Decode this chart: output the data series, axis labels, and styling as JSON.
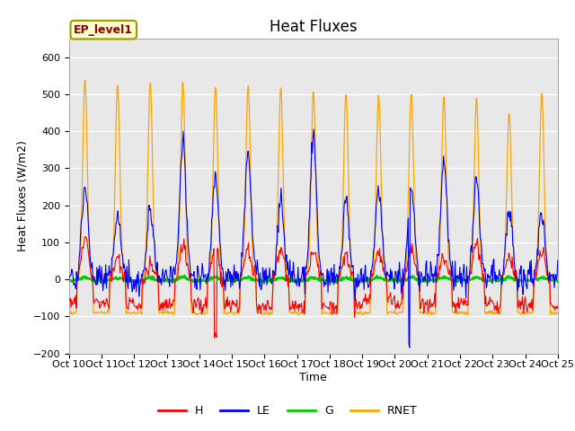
{
  "title": "Heat Fluxes",
  "xlabel": "Time",
  "ylabel": "Heat Fluxes (W/m2)",
  "annotation": "EP_level1",
  "ylim": [
    -200,
    650
  ],
  "yticks": [
    -200,
    -100,
    0,
    100,
    200,
    300,
    400,
    500,
    600
  ],
  "xtick_labels": [
    "Oct 10",
    "Oct 11",
    "Oct 12",
    "Oct 13",
    "Oct 14",
    "Oct 15",
    "Oct 16",
    "Oct 17",
    "Oct 18",
    "Oct 19",
    "Oct 20",
    "Oct 21",
    "Oct 22",
    "Oct 23",
    "Oct 24",
    "Oct 25"
  ],
  "colors": {
    "H": "#ff0000",
    "LE": "#0000ff",
    "G": "#00cc00",
    "RNET": "#ffa500"
  },
  "background_color": "#e8e8e8",
  "fig_background": "#ffffff",
  "grid_color": "#ffffff",
  "title_fontsize": 12,
  "axis_fontsize": 9,
  "tick_fontsize": 8
}
